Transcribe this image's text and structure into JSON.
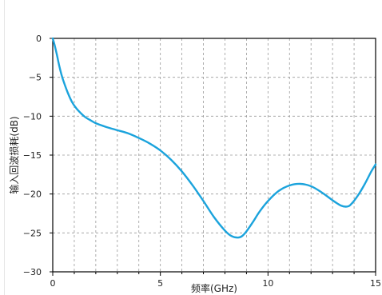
{
  "chart_data": {
    "type": "line",
    "title": "",
    "xlabel": "频率(GHz)",
    "ylabel": "输入回波损耗(dB)",
    "xlim": [
      0,
      15
    ],
    "ylim": [
      -30,
      0
    ],
    "xticks": [
      0,
      5,
      10,
      15
    ],
    "yticks": [
      0,
      -5,
      -10,
      -15,
      -20,
      -25,
      -30
    ],
    "grid": "dashed, minor spacing 1 GHz and 5 dB",
    "legend": "none",
    "line_color": "#1ba3dc",
    "series": [
      {
        "x": [
          0,
          0.1,
          0.2,
          0.3,
          0.4,
          0.5,
          0.7,
          0.9,
          1.1,
          1.3,
          1.5,
          1.8,
          2.0,
          2.5,
          3.0,
          3.5,
          4.0,
          4.5,
          5.0,
          5.5,
          6.0,
          6.5,
          7.0,
          7.5,
          8.0,
          8.3,
          8.6,
          8.8,
          9.0,
          9.3,
          9.6,
          10.0,
          10.5,
          11.0,
          11.5,
          12.0,
          12.5,
          13.0,
          13.4,
          13.7,
          13.9,
          14.2,
          14.5,
          14.8,
          15.0
        ],
        "y": [
          0,
          -1.0,
          -2.2,
          -3.5,
          -4.6,
          -5.5,
          -7.0,
          -8.2,
          -9.0,
          -9.6,
          -10.1,
          -10.6,
          -10.9,
          -11.4,
          -11.8,
          -12.2,
          -12.8,
          -13.5,
          -14.4,
          -15.6,
          -17.1,
          -18.9,
          -20.9,
          -23.0,
          -24.7,
          -25.4,
          -25.6,
          -25.4,
          -24.8,
          -23.6,
          -22.3,
          -20.9,
          -19.6,
          -18.9,
          -18.7,
          -19.0,
          -19.8,
          -20.8,
          -21.5,
          -21.6,
          -21.2,
          -20.1,
          -18.7,
          -17.1,
          -16.2
        ]
      }
    ]
  }
}
